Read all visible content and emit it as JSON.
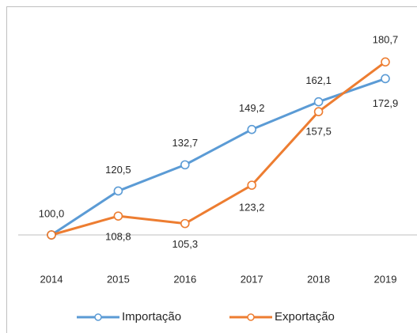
{
  "chart_data": {
    "type": "line",
    "categories": [
      "2014",
      "2015",
      "2016",
      "2017",
      "2018",
      "2019"
    ],
    "series": [
      {
        "name": "Importação",
        "color": "#5b9bd5",
        "values": [
          100,
          120.5,
          132.7,
          149.2,
          162.1,
          172.9
        ],
        "value_labels": [
          "100,0",
          "120,5",
          "132,7",
          "149,2",
          "162,1",
          "172,9"
        ]
      },
      {
        "name": "Exportação",
        "color": "#ed7d31",
        "values": [
          100,
          108.8,
          105.3,
          123.2,
          157.5,
          180.7
        ],
        "value_labels": [
          null,
          "108,8",
          "105,3",
          "123,2",
          "157,5",
          "180,7"
        ]
      }
    ],
    "ylim": [
      100,
      200
    ],
    "legend": "bottom"
  }
}
